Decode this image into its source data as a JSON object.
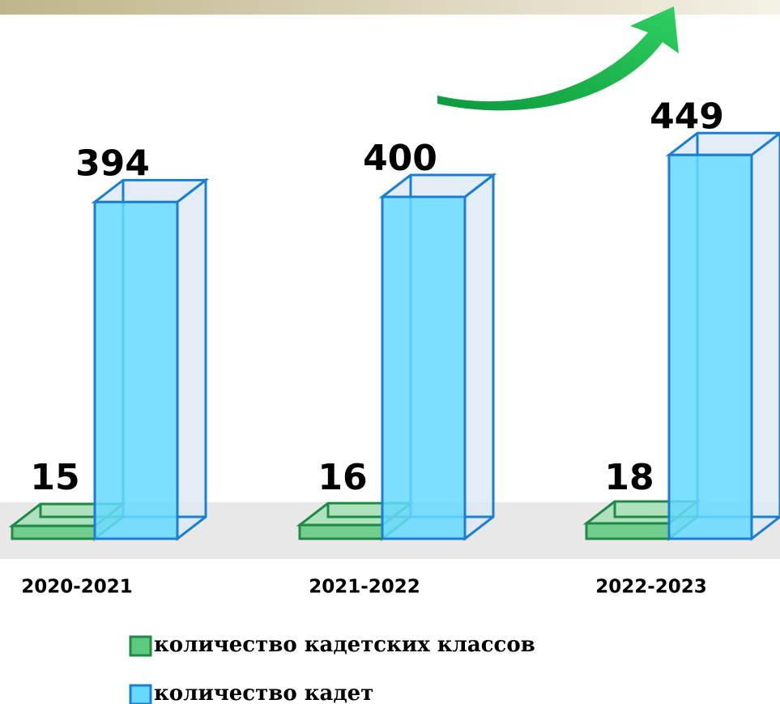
{
  "chart_data": {
    "type": "bar3d",
    "categories": [
      "2020-2021",
      "2021-2022",
      "2022-2023"
    ],
    "series": [
      {
        "name": "количество кадетских классов",
        "color": "#5dc97f",
        "values": [
          15,
          16,
          18
        ]
      },
      {
        "name": "количество кадет",
        "color": "#66d9ff",
        "values": [
          394,
          400,
          449
        ]
      }
    ]
  }
}
